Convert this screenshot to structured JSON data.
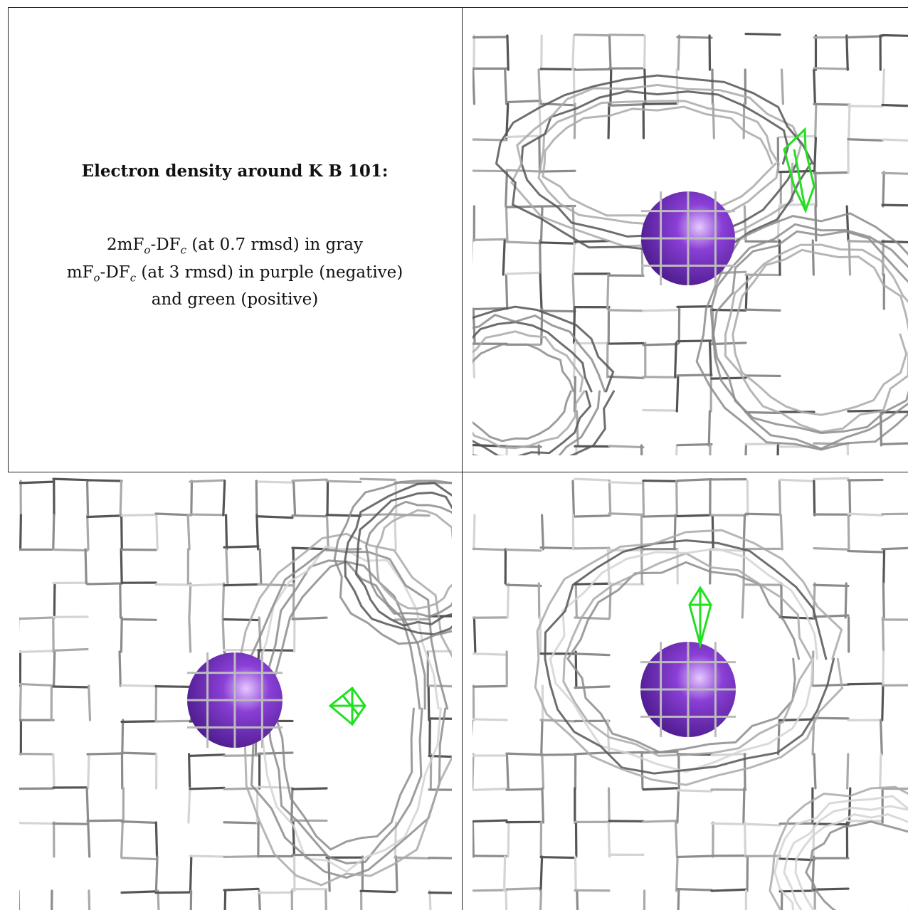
{
  "legend": {
    "title": "Electron density around K B 101:",
    "map1": {
      "name": "2mF",
      "sub_o": "o",
      "dash": "-DF",
      "sub_c": "c",
      "desc": " (at 0.7 rmsd) in gray"
    },
    "map2": {
      "name": "mF",
      "sub_o": "o",
      "dash": "-DF",
      "sub_c": "c",
      "desc": " (at 3 rmsd) in purple (negative)"
    },
    "map2_cont": "and green (positive)"
  },
  "colors": {
    "mesh_gray": "#a9a9a9",
    "mesh_dark": "#555555",
    "atom_purple": "#8a3fd6",
    "positive_green": "#22e01f"
  }
}
